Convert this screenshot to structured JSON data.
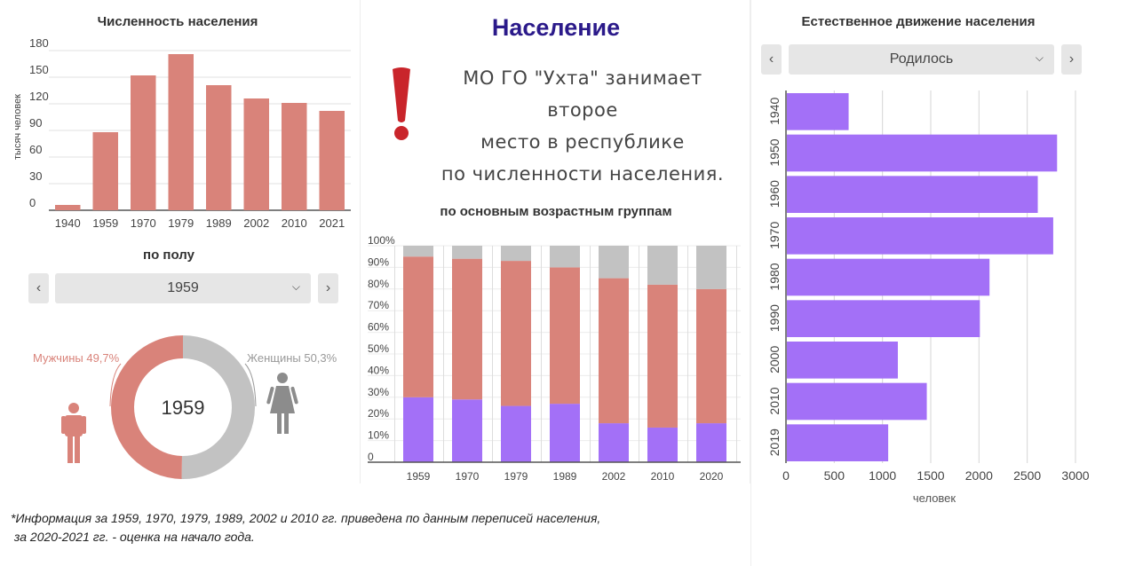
{
  "left": {
    "population_title": "Численность населения",
    "gender_title": "по полу",
    "gender_selector": {
      "prev": "‹",
      "next": "›",
      "value": "1959",
      "chevron": "chevron-down-icon"
    },
    "donut": {
      "center_label": "1959",
      "male_label": "Мужчины 49,7%",
      "female_label": "Женщины 50,3%",
      "male_pct": 49.7,
      "female_pct": 50.3,
      "male_color": "#d9837a",
      "female_color": "#c2c2c2"
    }
  },
  "center": {
    "title": "Население",
    "highlight_lines": [
      "МО ГО \"Ухта\" занимает второе",
      "место в республике",
      "по численности населения."
    ],
    "age_title": "по основным возрастным группам"
  },
  "right": {
    "title": "Естественное движение населения",
    "selector": {
      "prev": "‹",
      "next": "›",
      "value": "Родилось",
      "chevron": "chevron-down-icon"
    }
  },
  "footnote": [
    "*Информация за 1959, 1970, 1979, 1989, 2002 и 2010 гг. приведена по данным переписей населения,",
    " за 2020-2021 гг. - оценка на начало года."
  ],
  "chart_data": [
    {
      "id": "population",
      "type": "bar",
      "title": "Численность населения",
      "ylabel": "тысяч человек",
      "categories": [
        "1940",
        "1959",
        "1970",
        "1979",
        "1989",
        "2002",
        "2010",
        "2021"
      ],
      "values": [
        6,
        88,
        152,
        176,
        141,
        126,
        121,
        112
      ],
      "yticks": [
        0,
        30,
        60,
        90,
        120,
        150,
        180
      ],
      "ylim": [
        0,
        180
      ],
      "color": "#d9837a",
      "grid": true
    },
    {
      "id": "age_groups",
      "type": "bar",
      "stacked": true,
      "title": "по основным возрастным группам",
      "categories": [
        "1959",
        "1970",
        "1979",
        "1989",
        "2002",
        "2010",
        "2020"
      ],
      "series": [
        {
          "color": "#a370f7",
          "values": [
            30,
            29,
            26,
            27,
            18,
            16,
            18
          ]
        },
        {
          "color": "#d9837a",
          "values": [
            65,
            65,
            67,
            63,
            67,
            66,
            62
          ]
        },
        {
          "color": "#c2c2c2",
          "values": [
            5,
            6,
            7,
            10,
            15,
            18,
            20
          ]
        }
      ],
      "ytick_labels": [
        "0",
        "10%",
        "20%",
        "30%",
        "40%",
        "50%",
        "60%",
        "70%",
        "80%",
        "90%",
        "100%"
      ],
      "ylim": [
        0,
        100
      ],
      "grid": true
    },
    {
      "id": "natural_movement",
      "type": "bar",
      "orientation": "horizontal",
      "title": "Естественное движение населения",
      "xlabel": "человек",
      "categories": [
        "1940",
        "1950",
        "1960",
        "1970",
        "1980",
        "1990",
        "2000",
        "2010",
        "2019"
      ],
      "values": [
        640,
        2800,
        2600,
        2760,
        2100,
        2000,
        1150,
        1450,
        1050
      ],
      "xticks": [
        0,
        500,
        1000,
        1500,
        2000,
        2500,
        3000
      ],
      "xlim": [
        0,
        3000
      ],
      "color": "#a370f7",
      "grid": true
    }
  ]
}
